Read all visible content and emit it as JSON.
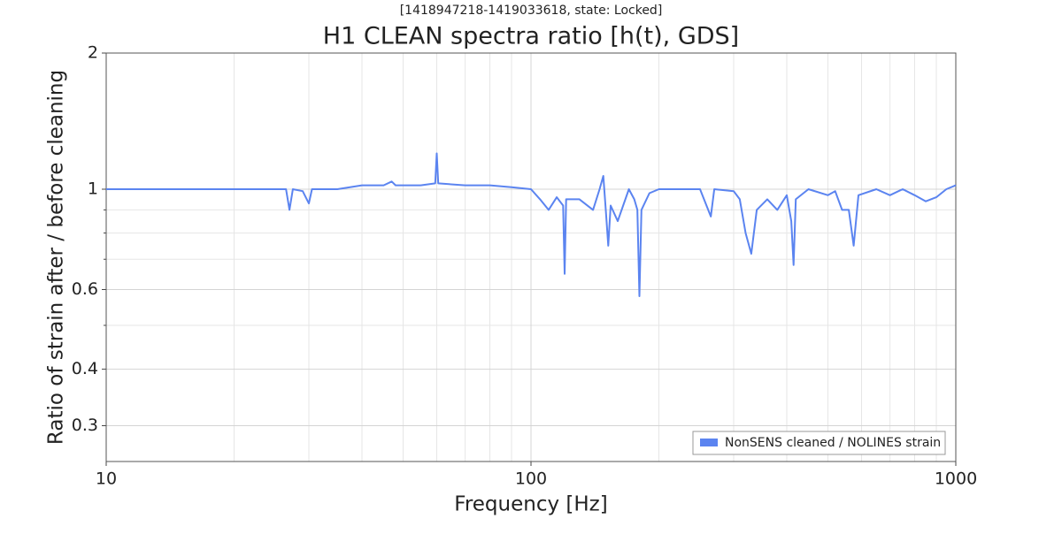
{
  "chart_data": {
    "type": "line",
    "subtitle": "[1418947218-1419033618, state: Locked]",
    "title": "H1 CLEAN spectra ratio [h(t), GDS]",
    "xlabel": "Frequency [Hz]",
    "ylabel": "Ratio of strain after / before cleaning",
    "xscale": "log",
    "yscale": "log",
    "grid": true,
    "legend_position": "lower right",
    "xlim": [
      10,
      1000
    ],
    "xticks": [
      10,
      100,
      1000
    ],
    "xminorticks": [
      20,
      30,
      40,
      50,
      60,
      70,
      80,
      90,
      200,
      300,
      400,
      500,
      600,
      700,
      800,
      900
    ],
    "ylim": [
      0.25,
      2
    ],
    "yticks": [
      0.3,
      0.4,
      0.6,
      1,
      2
    ],
    "yminorticks": [
      0.5,
      0.7,
      0.8,
      0.9
    ],
    "x": [
      10,
      15,
      20,
      25,
      26.5,
      27,
      27.5,
      29,
      30,
      30.5,
      35,
      40,
      45,
      47,
      48,
      55,
      59.5,
      60,
      60.5,
      70,
      80,
      90,
      100,
      105,
      110,
      115,
      119,
      120,
      121,
      130,
      140,
      145,
      148,
      150,
      152,
      154,
      160,
      170,
      175,
      178,
      180,
      182,
      190,
      200,
      250,
      265,
      270,
      300,
      310,
      320,
      330,
      340,
      360,
      380,
      400,
      410,
      415,
      420,
      450,
      500,
      520,
      540,
      560,
      575,
      590,
      650,
      700,
      750,
      800,
      850,
      900,
      950,
      1000
    ],
    "series": [
      {
        "name": "NonSENS cleaned / NOLINES strain",
        "color": "#5b84f0",
        "values": [
          1.0,
          1.0,
          1.0,
          1.0,
          1.0,
          0.9,
          1.0,
          0.99,
          0.93,
          1.0,
          1.0,
          1.02,
          1.02,
          1.04,
          1.02,
          1.02,
          1.03,
          1.2,
          1.03,
          1.02,
          1.02,
          1.01,
          1.0,
          0.95,
          0.9,
          0.96,
          0.92,
          0.65,
          0.95,
          0.95,
          0.9,
          1.0,
          1.07,
          0.9,
          0.75,
          0.92,
          0.85,
          1.0,
          0.95,
          0.9,
          0.58,
          0.9,
          0.98,
          1.0,
          1.0,
          0.87,
          1.0,
          0.99,
          0.95,
          0.8,
          0.72,
          0.9,
          0.95,
          0.9,
          0.97,
          0.85,
          0.68,
          0.95,
          1.0,
          0.97,
          0.99,
          0.9,
          0.9,
          0.75,
          0.97,
          1.0,
          0.97,
          1.0,
          0.97,
          0.94,
          0.96,
          1.0,
          1.02
        ]
      }
    ]
  }
}
